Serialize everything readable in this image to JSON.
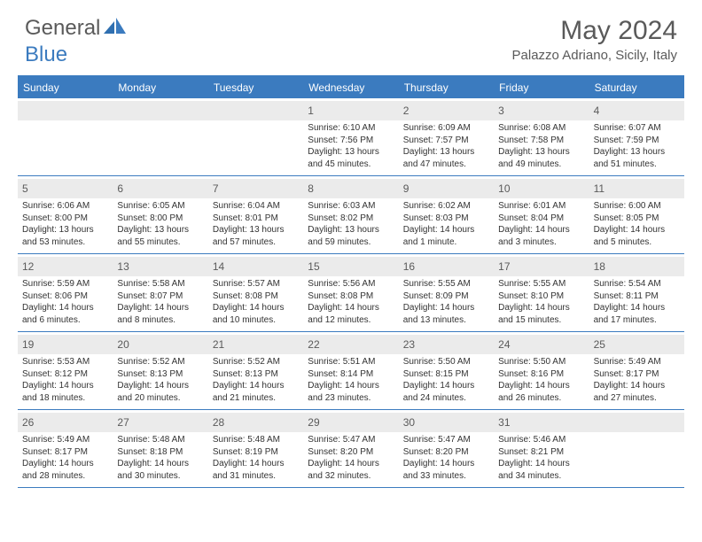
{
  "logo": {
    "part1": "General",
    "part2": "Blue"
  },
  "title": "May 2024",
  "location": "Palazzo Adriano, Sicily, Italy",
  "colors": {
    "accent": "#3b7bbf",
    "header_text": "#5a5a5a",
    "day_bg": "#ebebeb",
    "text": "#333333"
  },
  "weekdays": [
    "Sunday",
    "Monday",
    "Tuesday",
    "Wednesday",
    "Thursday",
    "Friday",
    "Saturday"
  ],
  "weeks": [
    [
      {
        "empty": true
      },
      {
        "empty": true
      },
      {
        "empty": true
      },
      {
        "num": "1",
        "sunrise": "Sunrise: 6:10 AM",
        "sunset": "Sunset: 7:56 PM",
        "daylight": "Daylight: 13 hours and 45 minutes."
      },
      {
        "num": "2",
        "sunrise": "Sunrise: 6:09 AM",
        "sunset": "Sunset: 7:57 PM",
        "daylight": "Daylight: 13 hours and 47 minutes."
      },
      {
        "num": "3",
        "sunrise": "Sunrise: 6:08 AM",
        "sunset": "Sunset: 7:58 PM",
        "daylight": "Daylight: 13 hours and 49 minutes."
      },
      {
        "num": "4",
        "sunrise": "Sunrise: 6:07 AM",
        "sunset": "Sunset: 7:59 PM",
        "daylight": "Daylight: 13 hours and 51 minutes."
      }
    ],
    [
      {
        "num": "5",
        "sunrise": "Sunrise: 6:06 AM",
        "sunset": "Sunset: 8:00 PM",
        "daylight": "Daylight: 13 hours and 53 minutes."
      },
      {
        "num": "6",
        "sunrise": "Sunrise: 6:05 AM",
        "sunset": "Sunset: 8:00 PM",
        "daylight": "Daylight: 13 hours and 55 minutes."
      },
      {
        "num": "7",
        "sunrise": "Sunrise: 6:04 AM",
        "sunset": "Sunset: 8:01 PM",
        "daylight": "Daylight: 13 hours and 57 minutes."
      },
      {
        "num": "8",
        "sunrise": "Sunrise: 6:03 AM",
        "sunset": "Sunset: 8:02 PM",
        "daylight": "Daylight: 13 hours and 59 minutes."
      },
      {
        "num": "9",
        "sunrise": "Sunrise: 6:02 AM",
        "sunset": "Sunset: 8:03 PM",
        "daylight": "Daylight: 14 hours and 1 minute."
      },
      {
        "num": "10",
        "sunrise": "Sunrise: 6:01 AM",
        "sunset": "Sunset: 8:04 PM",
        "daylight": "Daylight: 14 hours and 3 minutes."
      },
      {
        "num": "11",
        "sunrise": "Sunrise: 6:00 AM",
        "sunset": "Sunset: 8:05 PM",
        "daylight": "Daylight: 14 hours and 5 minutes."
      }
    ],
    [
      {
        "num": "12",
        "sunrise": "Sunrise: 5:59 AM",
        "sunset": "Sunset: 8:06 PM",
        "daylight": "Daylight: 14 hours and 6 minutes."
      },
      {
        "num": "13",
        "sunrise": "Sunrise: 5:58 AM",
        "sunset": "Sunset: 8:07 PM",
        "daylight": "Daylight: 14 hours and 8 minutes."
      },
      {
        "num": "14",
        "sunrise": "Sunrise: 5:57 AM",
        "sunset": "Sunset: 8:08 PM",
        "daylight": "Daylight: 14 hours and 10 minutes."
      },
      {
        "num": "15",
        "sunrise": "Sunrise: 5:56 AM",
        "sunset": "Sunset: 8:08 PM",
        "daylight": "Daylight: 14 hours and 12 minutes."
      },
      {
        "num": "16",
        "sunrise": "Sunrise: 5:55 AM",
        "sunset": "Sunset: 8:09 PM",
        "daylight": "Daylight: 14 hours and 13 minutes."
      },
      {
        "num": "17",
        "sunrise": "Sunrise: 5:55 AM",
        "sunset": "Sunset: 8:10 PM",
        "daylight": "Daylight: 14 hours and 15 minutes."
      },
      {
        "num": "18",
        "sunrise": "Sunrise: 5:54 AM",
        "sunset": "Sunset: 8:11 PM",
        "daylight": "Daylight: 14 hours and 17 minutes."
      }
    ],
    [
      {
        "num": "19",
        "sunrise": "Sunrise: 5:53 AM",
        "sunset": "Sunset: 8:12 PM",
        "daylight": "Daylight: 14 hours and 18 minutes."
      },
      {
        "num": "20",
        "sunrise": "Sunrise: 5:52 AM",
        "sunset": "Sunset: 8:13 PM",
        "daylight": "Daylight: 14 hours and 20 minutes."
      },
      {
        "num": "21",
        "sunrise": "Sunrise: 5:52 AM",
        "sunset": "Sunset: 8:13 PM",
        "daylight": "Daylight: 14 hours and 21 minutes."
      },
      {
        "num": "22",
        "sunrise": "Sunrise: 5:51 AM",
        "sunset": "Sunset: 8:14 PM",
        "daylight": "Daylight: 14 hours and 23 minutes."
      },
      {
        "num": "23",
        "sunrise": "Sunrise: 5:50 AM",
        "sunset": "Sunset: 8:15 PM",
        "daylight": "Daylight: 14 hours and 24 minutes."
      },
      {
        "num": "24",
        "sunrise": "Sunrise: 5:50 AM",
        "sunset": "Sunset: 8:16 PM",
        "daylight": "Daylight: 14 hours and 26 minutes."
      },
      {
        "num": "25",
        "sunrise": "Sunrise: 5:49 AM",
        "sunset": "Sunset: 8:17 PM",
        "daylight": "Daylight: 14 hours and 27 minutes."
      }
    ],
    [
      {
        "num": "26",
        "sunrise": "Sunrise: 5:49 AM",
        "sunset": "Sunset: 8:17 PM",
        "daylight": "Daylight: 14 hours and 28 minutes."
      },
      {
        "num": "27",
        "sunrise": "Sunrise: 5:48 AM",
        "sunset": "Sunset: 8:18 PM",
        "daylight": "Daylight: 14 hours and 30 minutes."
      },
      {
        "num": "28",
        "sunrise": "Sunrise: 5:48 AM",
        "sunset": "Sunset: 8:19 PM",
        "daylight": "Daylight: 14 hours and 31 minutes."
      },
      {
        "num": "29",
        "sunrise": "Sunrise: 5:47 AM",
        "sunset": "Sunset: 8:20 PM",
        "daylight": "Daylight: 14 hours and 32 minutes."
      },
      {
        "num": "30",
        "sunrise": "Sunrise: 5:47 AM",
        "sunset": "Sunset: 8:20 PM",
        "daylight": "Daylight: 14 hours and 33 minutes."
      },
      {
        "num": "31",
        "sunrise": "Sunrise: 5:46 AM",
        "sunset": "Sunset: 8:21 PM",
        "daylight": "Daylight: 14 hours and 34 minutes."
      },
      {
        "empty": true
      }
    ]
  ]
}
